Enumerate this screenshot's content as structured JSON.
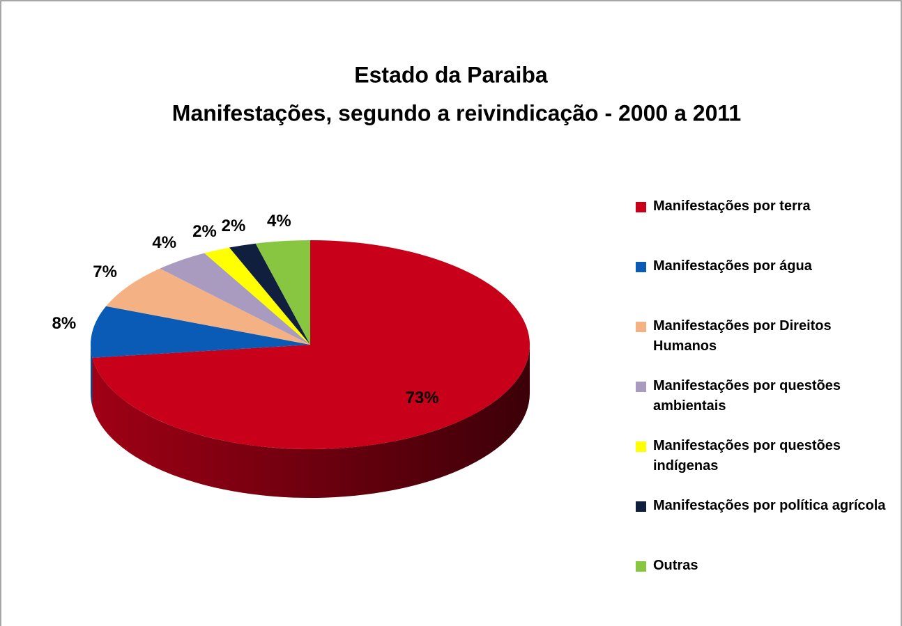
{
  "chart_data": {
    "type": "pie",
    "title": "Estado da Paraiba",
    "subtitle": "Manifestações, segundo a  reivindicação - 2000 a 2011",
    "categories": [
      "Manifestações por terra",
      "Manifestações por água",
      "Manifestações por Direitos Humanos",
      "Manifestações por questões ambientais",
      "Manifestações por questões indígenas",
      "Manifestações por política agrícola",
      "Outras"
    ],
    "values": [
      73,
      8,
      7,
      4,
      2,
      2,
      4
    ],
    "value_labels": [
      "73%",
      "8%",
      "7%",
      "4%",
      "2%",
      "2%",
      "4%"
    ],
    "colors": [
      "#c8001a",
      "#0a5bb5",
      "#f4b183",
      "#a99bc0",
      "#ffff00",
      "#0f1f3d",
      "#88c540"
    ],
    "legend": "right"
  }
}
